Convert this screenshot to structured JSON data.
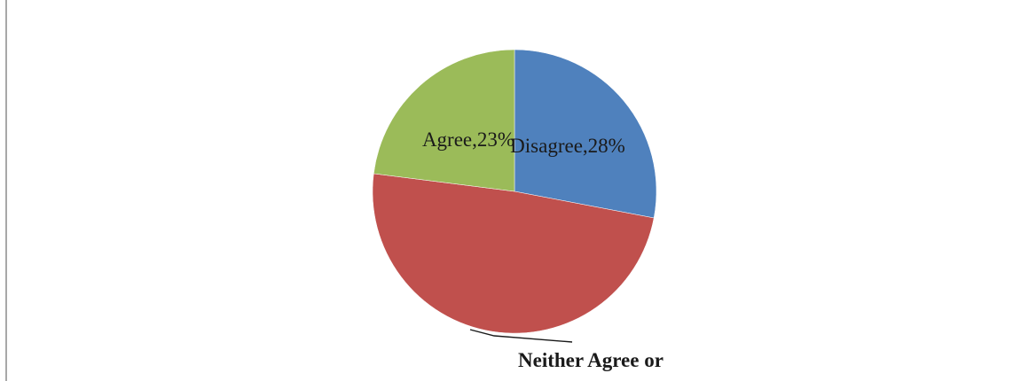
{
  "chart_data": {
    "type": "pie",
    "title": "",
    "slices": [
      {
        "label": "Disagree",
        "value": 28,
        "display": "Disagree,28%",
        "color": "#4f81bd"
      },
      {
        "label": "Neither Agree or Disagree",
        "value": 49,
        "display": "Neither Agree or",
        "color": "#c0504d"
      },
      {
        "label": "Agree",
        "value": 23,
        "display": "Agree,23%",
        "color": "#9bbb59"
      }
    ],
    "legend": "none"
  }
}
